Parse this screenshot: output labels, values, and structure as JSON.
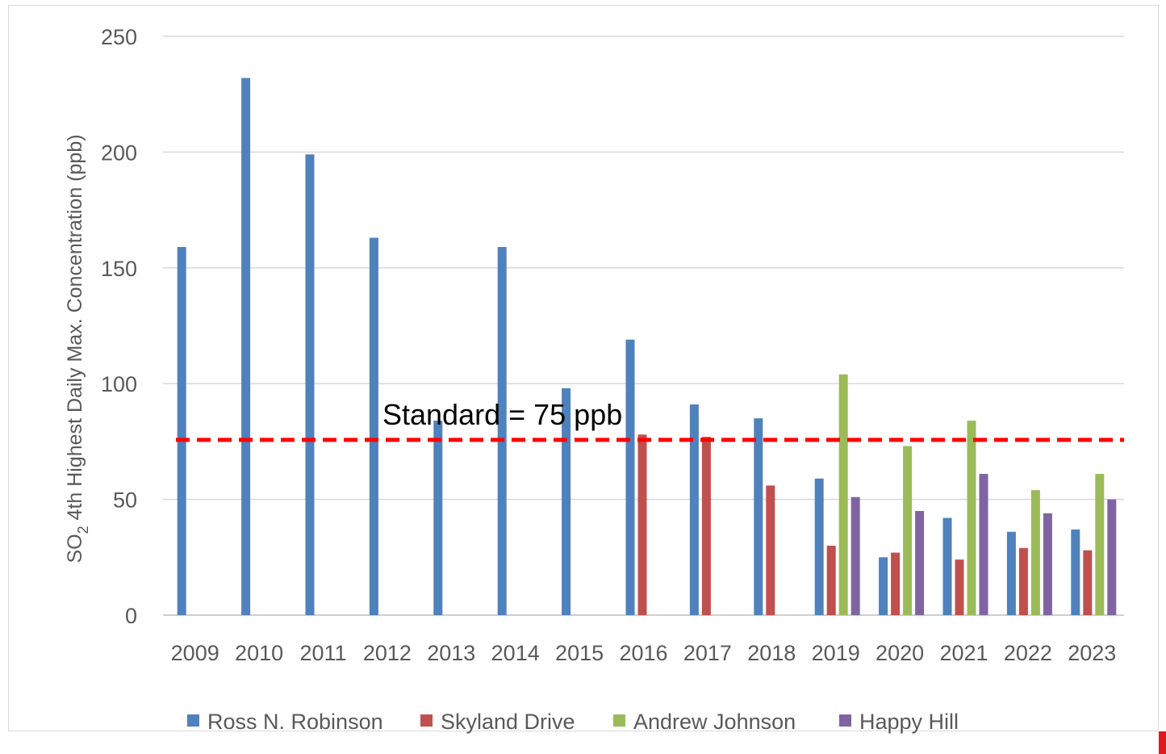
{
  "chart_data": {
    "type": "bar",
    "ylabel": "SO2 4th Highest Daily Max. Concentration (ppb)",
    "ylabel_parts": {
      "a": "SO",
      "sub": "2",
      "b": " 4th Highest Daily Max. Concentration (ppb)"
    },
    "ylim": [
      0,
      250
    ],
    "yticks": [
      0,
      50,
      100,
      150,
      200,
      250
    ],
    "grid": true,
    "legend_position": "bottom",
    "categories": [
      "2009",
      "2010",
      "2011",
      "2012",
      "2013",
      "2014",
      "2015",
      "2016",
      "2017",
      "2018",
      "2019",
      "2020",
      "2021",
      "2022",
      "2023"
    ],
    "series": [
      {
        "name": "Ross N. Robinson",
        "color": "#4f81bd",
        "values": [
          159,
          232,
          199,
          163,
          84,
          159,
          98,
          119,
          91,
          85,
          59,
          25,
          42,
          36,
          37
        ]
      },
      {
        "name": "Skyland Drive",
        "color": "#c0504d",
        "values": [
          null,
          null,
          null,
          null,
          null,
          null,
          null,
          78,
          77,
          56,
          30,
          27,
          24,
          29,
          28
        ]
      },
      {
        "name": "Andrew Johnson",
        "color": "#9bbb59",
        "values": [
          null,
          null,
          null,
          null,
          null,
          null,
          null,
          null,
          null,
          null,
          104,
          73,
          84,
          54,
          61
        ]
      },
      {
        "name": "Happy Hill",
        "color": "#8064a2",
        "values": [
          null,
          null,
          null,
          null,
          null,
          null,
          null,
          null,
          null,
          null,
          51,
          45,
          61,
          44,
          50
        ]
      }
    ],
    "annotations": [
      {
        "text": "Standard = 75 ppb",
        "y": 75,
        "color": "#ff0000",
        "style": "dashed"
      }
    ]
  }
}
